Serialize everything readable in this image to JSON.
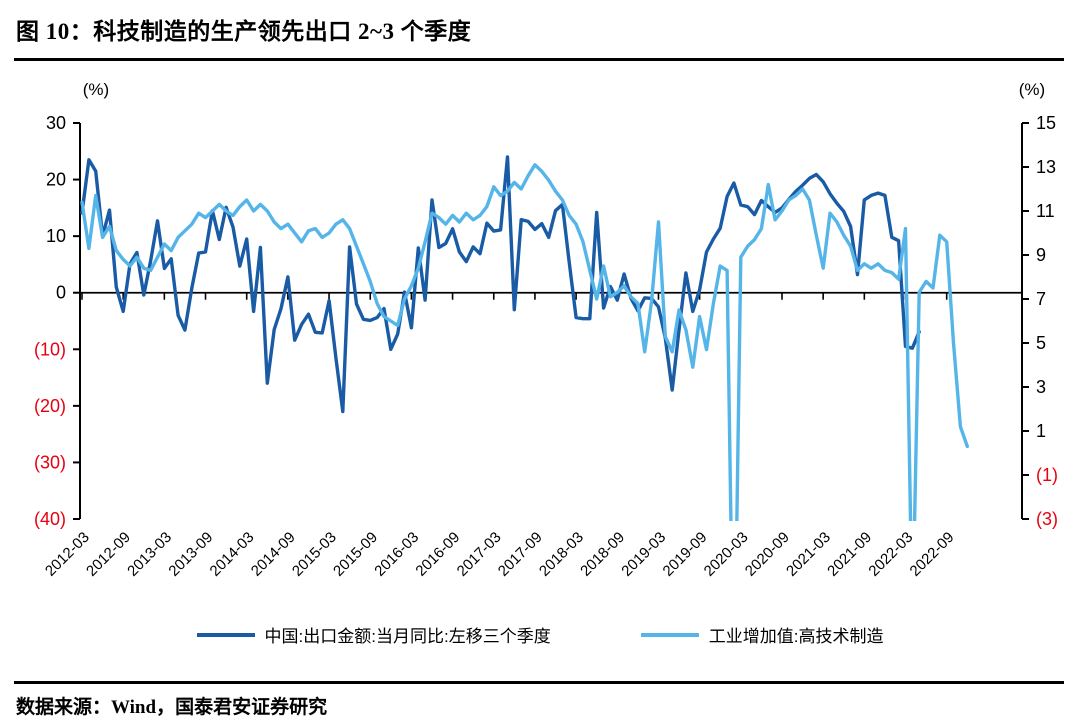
{
  "title": "图 10：科技制造的生产领先出口 2~3 个季度",
  "source_note": "数据来源：Wind，国泰君安证券研究",
  "colors": {
    "export_line": "#1a5ba6",
    "iva_line": "#55b5e8",
    "negative_tick": "#e60012",
    "axis": "#000000"
  },
  "legend": {
    "export_label": "中国:出口金额:当月同比:左移三个季度",
    "iva_label": "工业增加值:高技术制造"
  },
  "chart_data": {
    "type": "line",
    "title": "科技制造的生产领先出口 2~3 个季度",
    "grid": false,
    "legend_position": "bottom",
    "left_axis": {
      "unit": "(%)",
      "min": -40,
      "max": 30,
      "step": 10,
      "tick_values": [
        30,
        20,
        10,
        0,
        -10,
        -20,
        -30,
        -40
      ],
      "tick_labels": [
        "30",
        "20",
        "10",
        "0",
        "(10)",
        "(20)",
        "(30)",
        "(40)"
      ]
    },
    "right_axis": {
      "unit": "(%)",
      "min": -3,
      "max": 15,
      "step": 2,
      "tick_values": [
        15,
        13,
        11,
        9,
        7,
        5,
        3,
        1,
        -1,
        -3
      ],
      "tick_labels": [
        "15",
        "13",
        "11",
        "9",
        "7",
        "5",
        "3",
        "1",
        "(1)",
        "(3)"
      ]
    },
    "x_axis": {
      "start_month": "2012-03",
      "months_per_tick": 6,
      "tick_labels": [
        "2012-03",
        "2012-09",
        "2013-03",
        "2013-09",
        "2014-03",
        "2014-09",
        "2015-03",
        "2015-09",
        "2016-03",
        "2016-09",
        "2017-03",
        "2017-09",
        "2018-03",
        "2018-09",
        "2019-03",
        "2019-09",
        "2020-03",
        "2020-09",
        "2021-03",
        "2021-09",
        "2022-03",
        "2022-09"
      ]
    },
    "series": [
      {
        "name": "中国:出口金额:当月同比:左移三个季度",
        "axis": "left",
        "color": "#1a5ba6",
        "start": "2012-03",
        "frequency": "monthly",
        "values": [
          14.1,
          23.5,
          21.5,
          10.0,
          14.6,
          1.0,
          -3.3,
          5.1,
          7.1,
          -0.4,
          5.6,
          12.7,
          4.3,
          6.0,
          -4.0,
          -6.6,
          0.8,
          7.0,
          7.2,
          14.5,
          9.4,
          15.1,
          11.6,
          4.7,
          9.5,
          -3.3,
          8.0,
          -16.0,
          -6.5,
          -2.8,
          2.8,
          -8.4,
          -5.6,
          -3.8,
          -7.0,
          -7.1,
          -1.4,
          -11.5,
          -21.0,
          8.1,
          -2.0,
          -4.7,
          -4.9,
          -4.4,
          -2.8,
          -10.0,
          -7.3,
          0.1,
          -6.2,
          7.9,
          -1.3,
          16.4,
          8.0,
          8.7,
          11.3,
          7.2,
          5.5,
          8.1,
          6.9,
          12.3,
          10.9,
          11.1,
          24.0,
          -3.0,
          12.9,
          12.6,
          11.2,
          12.2,
          9.8,
          14.5,
          15.6,
          5.4,
          -4.4,
          -4.6,
          -4.6,
          14.2,
          -2.7,
          1.1,
          -1.3,
          3.3,
          -1.0,
          -3.2,
          -0.9,
          -1.0,
          -2.5,
          -8.0,
          -17.2,
          -6.6,
          3.5,
          -3.3,
          0.5,
          7.2,
          9.5,
          11.4,
          17.0,
          19.4,
          15.5,
          15.2,
          13.8,
          16.3,
          15.2,
          14.2,
          15.0,
          16.5,
          17.9,
          19.0,
          20.2,
          20.9,
          19.6,
          17.5,
          15.8,
          14.4,
          11.7,
          3.2,
          16.4,
          17.2,
          17.6,
          17.2,
          9.8,
          9.2,
          -9.5,
          -9.8,
          -6.9
        ]
      },
      {
        "name": "工业增加值:高技术制造",
        "axis": "right",
        "color": "#55b5e8",
        "start": "2012-03",
        "frequency": "monthly",
        "values": [
          11.4,
          9.3,
          11.7,
          9.8,
          10.3,
          9.2,
          8.8,
          8.5,
          8.9,
          8.4,
          8.3,
          8.9,
          9.5,
          9.2,
          9.8,
          10.1,
          10.4,
          10.9,
          10.7,
          11.0,
          11.3,
          11.0,
          10.8,
          11.2,
          11.5,
          11.0,
          11.3,
          11.0,
          10.5,
          10.2,
          10.4,
          10.0,
          9.6,
          10.1,
          10.2,
          9.8,
          10.0,
          10.4,
          10.6,
          10.2,
          9.4,
          8.6,
          7.8,
          6.8,
          6.2,
          6.0,
          5.8,
          7.0,
          7.6,
          8.4,
          9.6,
          10.9,
          10.7,
          10.4,
          10.8,
          10.5,
          10.9,
          10.6,
          10.8,
          11.2,
          12.1,
          11.7,
          11.9,
          12.3,
          12.0,
          12.6,
          13.1,
          12.8,
          12.4,
          11.9,
          11.5,
          10.8,
          10.4,
          9.6,
          8.3,
          7.0,
          8.5,
          7.1,
          7.3,
          7.6,
          7.1,
          6.8,
          4.6,
          6.9,
          10.5,
          5.3,
          4.6,
          6.5,
          5.6,
          3.9,
          6.2,
          4.7,
          6.8,
          8.5,
          8.3,
          -12.0,
          8.9,
          9.4,
          9.7,
          10.2,
          12.2,
          10.6,
          11.0,
          11.5,
          11.7,
          12.0,
          11.5,
          9.9,
          8.4,
          10.9,
          10.5,
          9.9,
          9.4,
          8.3,
          8.6,
          8.4,
          8.6,
          8.3,
          8.2,
          7.9,
          10.2,
          -8.0,
          7.3,
          7.8,
          7.5,
          9.9,
          9.6,
          5.0,
          1.2,
          0.3
        ]
      }
    ]
  }
}
